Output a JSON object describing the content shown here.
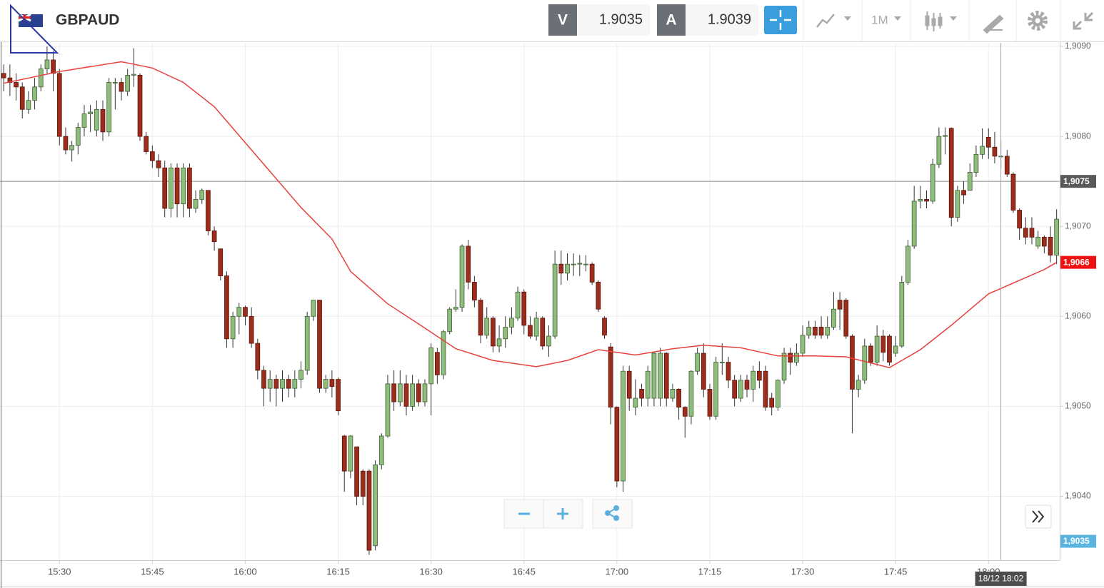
{
  "toolbar": {
    "symbol": "GBPAUD",
    "bid_label": "V",
    "bid": "1.9035",
    "ask_label": "A",
    "ask": "1.9039",
    "timeframe": "1M"
  },
  "chart_data": {
    "type": "candlestick",
    "up_color": "#8fbd7c",
    "down_color": "#9c2c1b",
    "ma_color": "#e8413c",
    "xlim": [
      -0.6,
      170.5
    ],
    "xticks": [
      {
        "value": 9,
        "label": "15:30"
      },
      {
        "value": 24,
        "label": "15:45"
      },
      {
        "value": 39,
        "label": "16:00"
      },
      {
        "value": 54,
        "label": "16:15"
      },
      {
        "value": 69,
        "label": "16:30"
      },
      {
        "value": 84,
        "label": "16:45"
      },
      {
        "value": 99,
        "label": "17:00"
      },
      {
        "value": 114,
        "label": "17:15"
      },
      {
        "value": 129,
        "label": "17:30"
      },
      {
        "value": 144,
        "label": "17:45"
      },
      {
        "value": 159,
        "label": "18:00"
      }
    ],
    "ylim": [
      1.90329,
      1.90904
    ],
    "yticks": [
      {
        "value": 1.909,
        "label": "1,9090"
      },
      {
        "value": 1.908,
        "label": "1,9080"
      },
      {
        "value": 1.907,
        "label": "1,9070"
      },
      {
        "value": 1.906,
        "label": "1,9060"
      },
      {
        "value": 1.905,
        "label": "1,9050"
      },
      {
        "value": 1.904,
        "label": "1,9040"
      }
    ],
    "grid": true,
    "open": [
      1.9087,
      1.90865,
      1.9086,
      1.90855,
      1.9083,
      1.9084,
      1.90855,
      1.90875,
      1.90885,
      1.9087,
      1.908,
      1.90785,
      1.9079,
      1.9081,
      1.90825,
      1.90807,
      1.9083,
      1.90805,
      1.9086,
      1.9086,
      1.9085,
      1.90868,
      1.90868,
      1.908,
      1.90783,
      1.90773,
      1.90765,
      1.9072,
      1.90765,
      1.90725,
      1.90765,
      1.9072,
      1.9073,
      1.9074,
      1.90695,
      1.90675,
      1.90645,
      1.90575,
      1.906,
      1.9061,
      1.906,
      1.9057,
      1.9054,
      1.9052,
      1.9053,
      1.9052,
      1.9053,
      1.9052,
      1.9053,
      1.9054,
      1.906,
      1.90618,
      1.9052,
      1.9053,
      1.9053,
      1.90467,
      1.90428,
      1.90455,
      1.90428,
      1.90428,
      1.90345,
      1.90435,
      1.90467,
      1.90525,
      1.90505,
      1.90525,
      1.905,
      1.90525,
      1.90505,
      1.90525,
      1.9056,
      1.90535,
      1.90583,
      1.90608,
      1.9061,
      1.90678,
      1.90638,
      1.90618,
      1.90579,
      1.90598,
      1.90567,
      1.90575,
      1.90588,
      1.90598,
      1.90627,
      1.9059,
      1.90578,
      1.90598,
      1.90567,
      1.90578,
      1.90658,
      1.90648,
      1.90658,
      1.90658,
      1.90658,
      1.90658,
      1.90638,
      1.90598,
      1.90566,
      1.90499,
      1.90417,
      1.90539,
      1.90499,
      1.90519,
      1.90509,
      1.90509,
      1.90509,
      1.90559,
      1.90509,
      1.90519,
      1.90499,
      1.90489,
      1.90539,
      1.90559,
      1.90519,
      1.90489,
      1.90549,
      1.90549,
      1.90529,
      1.90509,
      1.90529,
      1.90519,
      1.90539,
      1.90539,
      1.90509,
      1.90499,
      1.90529,
      1.90559,
      1.90549,
      1.90559,
      1.90579,
      1.90588,
      1.90588,
      1.90579,
      1.90588,
      1.90618,
      1.90618,
      1.90578,
      1.90519,
      1.90529,
      1.90567,
      1.90549,
      1.90578,
      1.90578,
      1.90559,
      1.90567,
      1.90638,
      1.90678,
      1.90728,
      1.9073,
      1.90728,
      1.90769,
      1.908,
      1.90809,
      1.9071,
      1.9074,
      1.9074,
      1.9076,
      1.9078,
      1.90799,
      1.90788,
      1.90778,
      1.90778,
      1.90758,
      1.90718,
      1.90698,
      1.90698,
      1.90678,
      1.90688,
      1.90688,
      1.90668
    ],
    "high": [
      1.9088,
      1.9088,
      1.9087,
      1.9086,
      1.9085,
      1.90865,
      1.9088,
      1.909,
      1.90895,
      1.90875,
      1.9081,
      1.90795,
      1.90815,
      1.90835,
      1.90835,
      1.9084,
      1.9084,
      1.90865,
      1.90865,
      1.90865,
      1.90875,
      1.90898,
      1.9087,
      1.90805,
      1.9079,
      1.9078,
      1.90773,
      1.9077,
      1.9077,
      1.9077,
      1.9077,
      1.9074,
      1.90742,
      1.9074,
      1.907,
      1.90675,
      1.9065,
      1.90605,
      1.90615,
      1.90612,
      1.9061,
      1.90575,
      1.90545,
      1.9054,
      1.90535,
      1.9054,
      1.90535,
      1.9054,
      1.9055,
      1.90605,
      1.90618,
      1.90618,
      1.90535,
      1.9054,
      1.90532,
      1.90468,
      1.90468,
      1.90455,
      1.9043,
      1.9043,
      1.9044,
      1.9047,
      1.90535,
      1.9054,
      1.9054,
      1.90535,
      1.90535,
      1.9053,
      1.9053,
      1.9057,
      1.90565,
      1.90585,
      1.9061,
      1.9063,
      1.9068,
      1.90685,
      1.90645,
      1.9062,
      1.9061,
      1.906,
      1.9059,
      1.906,
      1.9061,
      1.90633,
      1.9063,
      1.906,
      1.90605,
      1.906,
      1.9059,
      1.90673,
      1.90673,
      1.9067,
      1.9067,
      1.90668,
      1.90668,
      1.9066,
      1.9064,
      1.906,
      1.9057,
      1.905,
      1.90545,
      1.90545,
      1.9053,
      1.90525,
      1.90545,
      1.9056,
      1.90565,
      1.9056,
      1.90525,
      1.9052,
      1.905,
      1.9054,
      1.90565,
      1.9057,
      1.90525,
      1.90555,
      1.9057,
      1.90555,
      1.90535,
      1.90535,
      1.90535,
      1.90545,
      1.9055,
      1.90545,
      1.90515,
      1.9053,
      1.90565,
      1.90565,
      1.9057,
      1.9059,
      1.90595,
      1.90595,
      1.906,
      1.906,
      1.90627,
      1.90627,
      1.9062,
      1.9058,
      1.90535,
      1.90575,
      1.9057,
      1.9059,
      1.90585,
      1.9058,
      1.90578,
      1.90645,
      1.90685,
      1.90745,
      1.90745,
      1.9074,
      1.90775,
      1.9081,
      1.9081,
      1.9081,
      1.90745,
      1.9075,
      1.9077,
      1.9079,
      1.90809,
      1.90809,
      1.90805,
      1.90795,
      1.90785,
      1.9076,
      1.9072,
      1.9071,
      1.9071,
      1.90695,
      1.9069,
      1.907,
      1.90719
    ],
    "low": [
      1.9085,
      1.90845,
      1.9084,
      1.9082,
      1.90825,
      1.9083,
      1.9085,
      1.9087,
      1.9085,
      1.9079,
      1.9078,
      1.90772,
      1.9078,
      1.908,
      1.90805,
      1.908,
      1.90795,
      1.908,
      1.9083,
      1.9084,
      1.90845,
      1.90855,
      1.90795,
      1.9078,
      1.90765,
      1.90755,
      1.9071,
      1.9071,
      1.9071,
      1.9071,
      1.9071,
      1.90715,
      1.90725,
      1.9069,
      1.90673,
      1.9064,
      1.90565,
      1.90565,
      1.9058,
      1.9059,
      1.90565,
      1.9053,
      1.905,
      1.90505,
      1.905,
      1.90505,
      1.9051,
      1.9051,
      1.9052,
      1.90535,
      1.90595,
      1.90515,
      1.90515,
      1.9051,
      1.9049,
      1.90405,
      1.9042,
      1.9039,
      1.9039,
      1.90335,
      1.9034,
      1.9043,
      1.90465,
      1.90495,
      1.905,
      1.9049,
      1.90495,
      1.905,
      1.905,
      1.9049,
      1.90525,
      1.9053,
      1.9058,
      1.90605,
      1.90605,
      1.9063,
      1.9061,
      1.9057,
      1.90575,
      1.9056,
      1.9056,
      1.90565,
      1.9058,
      1.90595,
      1.9058,
      1.90575,
      1.90573,
      1.90563,
      1.90555,
      1.90575,
      1.90635,
      1.9064,
      1.90645,
      1.90645,
      1.9065,
      1.90635,
      1.90605,
      1.90575,
      1.9048,
      1.9041,
      1.90405,
      1.90495,
      1.9049,
      1.905,
      1.905,
      1.905,
      1.905,
      1.905,
      1.90505,
      1.90485,
      1.90465,
      1.9048,
      1.90535,
      1.9051,
      1.90485,
      1.90485,
      1.90535,
      1.9052,
      1.905,
      1.90505,
      1.9051,
      1.90505,
      1.9052,
      1.90495,
      1.9049,
      1.90495,
      1.90525,
      1.90535,
      1.90545,
      1.90555,
      1.90575,
      1.90575,
      1.90575,
      1.90575,
      1.90585,
      1.90585,
      1.90575,
      1.9047,
      1.9051,
      1.90525,
      1.90545,
      1.90545,
      1.9055,
      1.90545,
      1.90555,
      1.90565,
      1.90635,
      1.90675,
      1.9072,
      1.9072,
      1.90725,
      1.90765,
      1.9078,
      1.907,
      1.90705,
      1.90725,
      1.9074,
      1.90755,
      1.90775,
      1.90775,
      1.9077,
      1.90765,
      1.90755,
      1.90715,
      1.90685,
      1.9068,
      1.9068,
      1.90675,
      1.9067,
      1.9066,
      1.90658
    ],
    "close": [
      1.90865,
      1.9086,
      1.90855,
      1.9083,
      1.9084,
      1.90855,
      1.90875,
      1.90885,
      1.9087,
      1.908,
      1.90785,
      1.9079,
      1.9081,
      1.90825,
      1.90827,
      1.9083,
      1.90805,
      1.9086,
      1.9086,
      1.9085,
      1.90868,
      1.90869,
      1.908,
      1.90783,
      1.90773,
      1.90765,
      1.9072,
      1.90765,
      1.90725,
      1.90765,
      1.9072,
      1.9073,
      1.9074,
      1.90695,
      1.90683,
      1.90645,
      1.90575,
      1.906,
      1.9061,
      1.906,
      1.9057,
      1.9054,
      1.9052,
      1.9053,
      1.9052,
      1.9053,
      1.9052,
      1.9053,
      1.9054,
      1.906,
      1.90618,
      1.9052,
      1.9053,
      1.90522,
      1.90495,
      1.90428,
      1.90467,
      1.904,
      1.904,
      1.9034,
      1.90435,
      1.90467,
      1.90525,
      1.90505,
      1.90525,
      1.905,
      1.90525,
      1.90505,
      1.90525,
      1.90565,
      1.90535,
      1.90583,
      1.90608,
      1.9061,
      1.90678,
      1.90638,
      1.90618,
      1.90579,
      1.90598,
      1.90567,
      1.90575,
      1.90588,
      1.90598,
      1.90627,
      1.9059,
      1.90578,
      1.90598,
      1.90567,
      1.90578,
      1.90658,
      1.90648,
      1.90658,
      1.90658,
      1.90659,
      1.90658,
      1.90638,
      1.90608,
      1.90579,
      1.90499,
      1.90417,
      1.90539,
      1.90509,
      1.90509,
      1.90509,
      1.90539,
      1.90559,
      1.90559,
      1.90509,
      1.90519,
      1.90499,
      1.90489,
      1.90539,
      1.90559,
      1.90519,
      1.90489,
      1.90549,
      1.90549,
      1.90529,
      1.90509,
      1.90529,
      1.90519,
      1.90539,
      1.90529,
      1.90499,
      1.90499,
      1.90529,
      1.90559,
      1.90549,
      1.90559,
      1.90579,
      1.90588,
      1.90579,
      1.90579,
      1.90588,
      1.90608,
      1.90608,
      1.90578,
      1.90519,
      1.90529,
      1.90567,
      1.90549,
      1.90578,
      1.9056,
      1.90549,
      1.90567,
      1.90638,
      1.90678,
      1.90728,
      1.9073,
      1.90728,
      1.90769,
      1.908,
      1.90801,
      1.9071,
      1.9074,
      1.90735,
      1.9076,
      1.9078,
      1.90789,
      1.90788,
      1.90778,
      1.90778,
      1.90758,
      1.90718,
      1.90698,
      1.90688,
      1.90688,
      1.90688,
      1.90678,
      1.90668,
      1.90708
    ],
    "ma": {
      "x": [
        0,
        9,
        19,
        24,
        29,
        34,
        39,
        45,
        48,
        53,
        56,
        62,
        68,
        73,
        79,
        86,
        91,
        96,
        102,
        108,
        113,
        119,
        125,
        131,
        136,
        143,
        148,
        153,
        159,
        168,
        170
      ],
      "values": [
        1.90859,
        1.90872,
        1.90883,
        1.90876,
        1.9086,
        1.90833,
        1.90793,
        1.90745,
        1.90721,
        1.90686,
        1.9065,
        1.90614,
        1.90587,
        1.90564,
        1.90551,
        1.90544,
        1.90551,
        1.90563,
        1.90557,
        1.90564,
        1.90568,
        1.90565,
        1.90556,
        1.90556,
        1.90555,
        1.90543,
        1.90563,
        1.9059,
        1.90625,
        1.90652,
        1.9066
      ]
    },
    "price_markers": [
      {
        "value": 1.9075,
        "label": "1,9075",
        "color": "#595959",
        "line": true
      },
      {
        "value": 1.9066,
        "label": "1,9066",
        "color": "#ee1111"
      },
      {
        "value": 1.9035,
        "label": "1,9035",
        "color": "#5ab4df"
      }
    ],
    "crosshair": {
      "x": 161,
      "label": "18/12 18:02"
    }
  }
}
